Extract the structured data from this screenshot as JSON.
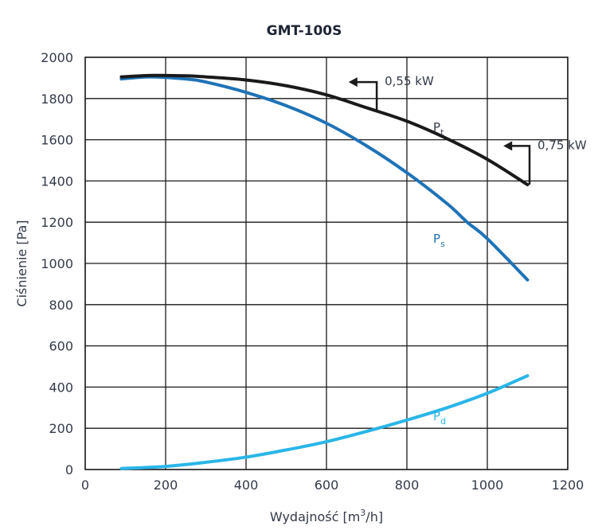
{
  "chart_data": {
    "type": "line",
    "title": "GMT-100S",
    "xlabel": "Wydajność [m3/h]",
    "xlabel_parts": {
      "prefix": "Wydajność [m",
      "sup": "3",
      "suffix": "/h]"
    },
    "ylabel": "Ciśnienie [Pa]",
    "xlim": [
      0,
      1200
    ],
    "ylim": [
      0,
      2000
    ],
    "x_ticks": [
      0,
      200,
      400,
      600,
      800,
      1000,
      1200
    ],
    "y_ticks": [
      0,
      200,
      400,
      600,
      800,
      1000,
      1200,
      1400,
      1600,
      1800,
      2000
    ],
    "grid": true,
    "legend": "inline labels",
    "series": [
      {
        "name": "Pt",
        "label_main": "P",
        "label_sub": "t",
        "color": "#1a1a1a",
        "points": [
          [
            90,
            1905
          ],
          [
            170,
            1912
          ],
          [
            250,
            1910
          ],
          [
            300,
            1905
          ],
          [
            400,
            1890
          ],
          [
            500,
            1862
          ],
          [
            600,
            1818
          ],
          [
            700,
            1755
          ],
          [
            800,
            1690
          ],
          [
            900,
            1605
          ],
          [
            1000,
            1505
          ],
          [
            1100,
            1382
          ]
        ]
      },
      {
        "name": "Ps",
        "label_main": "P",
        "label_sub": "s",
        "color": "#1f73b7",
        "points": [
          [
            90,
            1895
          ],
          [
            160,
            1905
          ],
          [
            250,
            1895
          ],
          [
            300,
            1880
          ],
          [
            400,
            1830
          ],
          [
            500,
            1765
          ],
          [
            600,
            1680
          ],
          [
            700,
            1570
          ],
          [
            800,
            1440
          ],
          [
            900,
            1290
          ],
          [
            950,
            1200
          ],
          [
            1000,
            1120
          ],
          [
            1100,
            920
          ]
        ]
      },
      {
        "name": "Pd",
        "label_main": "P",
        "label_sub": "d",
        "color": "#29b6e8",
        "points": [
          [
            90,
            5
          ],
          [
            200,
            15
          ],
          [
            300,
            35
          ],
          [
            400,
            60
          ],
          [
            500,
            95
          ],
          [
            600,
            135
          ],
          [
            700,
            185
          ],
          [
            800,
            240
          ],
          [
            900,
            300
          ],
          [
            1000,
            370
          ],
          [
            1100,
            455
          ]
        ]
      }
    ],
    "annotations": [
      {
        "text": "0,55 kW",
        "x": 725,
        "y_from": 1740,
        "y_to": 1880,
        "arrow_to_x": 655
      },
      {
        "text": "0,75 kW",
        "x": 1105,
        "y_from": 1382,
        "y_to": 1570,
        "arrow_to_x": 1040
      }
    ],
    "series_label_positions": [
      {
        "name": "Pt",
        "x": 905,
        "y": 1640
      },
      {
        "name": "Ps",
        "x": 905,
        "y": 1100
      },
      {
        "name": "Pd",
        "x": 905,
        "y": 240
      }
    ]
  }
}
